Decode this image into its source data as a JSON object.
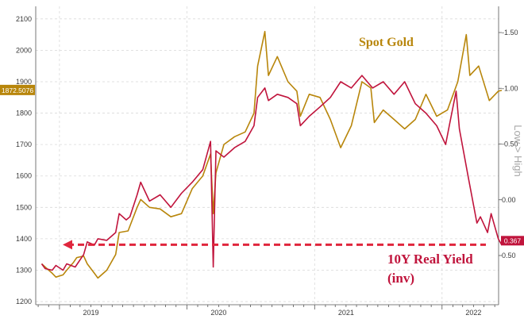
{
  "chart_data": {
    "type": "line",
    "title": "",
    "x_ticks": [
      "2019",
      "2020",
      "2021",
      "2022"
    ],
    "left_axis": {
      "ticks": [
        1200,
        1300,
        1400,
        1500,
        1600,
        1700,
        1800,
        1900,
        2000,
        2100
      ],
      "range": [
        1190,
        2140
      ]
    },
    "right_axis": {
      "label": "Low > High",
      "ticks": [
        -1.5,
        -1.0,
        -0.5,
        0.0,
        0.5
      ],
      "tick_labels": [
        "-1.50",
        "-1.00",
        "-0.50",
        "0.00",
        "0.50"
      ],
      "inverted": true
    },
    "last_value_labels": {
      "gold": "1872.5076",
      "real_yield": "0.367"
    },
    "series": [
      {
        "name": "Spot Gold",
        "color": "#b8860b",
        "axis": "left",
        "points": [
          [
            "2018-11",
            1320
          ],
          [
            "2018-11",
            1310
          ],
          [
            "2018-12",
            1290
          ],
          [
            "2018-12",
            1278
          ],
          [
            "2019-01",
            1285
          ],
          [
            "2019-01",
            1300
          ],
          [
            "2019-02",
            1325
          ],
          [
            "2019-02",
            1340
          ],
          [
            "2019-03",
            1345
          ],
          [
            "2019-03",
            1320
          ],
          [
            "2019-04",
            1290
          ],
          [
            "2019-04",
            1275
          ],
          [
            "2019-05",
            1300
          ],
          [
            "2019-06",
            1350
          ],
          [
            "2019-06",
            1420
          ],
          [
            "2019-07",
            1425
          ],
          [
            "2019-08",
            1500
          ],
          [
            "2019-08",
            1525
          ],
          [
            "2019-09",
            1500
          ],
          [
            "2019-10",
            1495
          ],
          [
            "2019-11",
            1470
          ],
          [
            "2019-12",
            1480
          ],
          [
            "2020-01",
            1560
          ],
          [
            "2020-02",
            1600
          ],
          [
            "2020-03",
            1670
          ],
          [
            "2020-03",
            1480
          ],
          [
            "2020-03",
            1610
          ],
          [
            "2020-04",
            1700
          ],
          [
            "2020-05",
            1725
          ],
          [
            "2020-06",
            1740
          ],
          [
            "2020-07",
            1800
          ],
          [
            "2020-07",
            1950
          ],
          [
            "2020-08",
            2060
          ],
          [
            "2020-08",
            1920
          ],
          [
            "2020-09",
            1980
          ],
          [
            "2020-10",
            1900
          ],
          [
            "2020-11",
            1870
          ],
          [
            "2020-11",
            1790
          ],
          [
            "2020-12",
            1860
          ],
          [
            "2021-01",
            1850
          ],
          [
            "2021-02",
            1780
          ],
          [
            "2021-03",
            1690
          ],
          [
            "2021-04",
            1760
          ],
          [
            "2021-05",
            1900
          ],
          [
            "2021-06",
            1880
          ],
          [
            "2021-06",
            1770
          ],
          [
            "2021-07",
            1810
          ],
          [
            "2021-08",
            1780
          ],
          [
            "2021-09",
            1750
          ],
          [
            "2021-10",
            1780
          ],
          [
            "2021-11",
            1860
          ],
          [
            "2021-12",
            1790
          ],
          [
            "2022-01",
            1810
          ],
          [
            "2022-02",
            1900
          ],
          [
            "2022-03",
            2050
          ],
          [
            "2022-03",
            1920
          ],
          [
            "2022-04",
            1950
          ],
          [
            "2022-05",
            1840
          ],
          [
            "2022-06",
            1870
          ],
          [
            "2022-06",
            1872.5
          ]
        ]
      },
      {
        "name": "10Y Real Yield (inv)",
        "color": "#c0143c",
        "axis": "right",
        "points": [
          [
            "2018-11",
            1320
          ],
          [
            "2018-11",
            1305
          ],
          [
            "2018-12",
            1300
          ],
          [
            "2018-12",
            1315
          ],
          [
            "2019-01",
            1300
          ],
          [
            "2019-01",
            1320
          ],
          [
            "2019-02",
            1310
          ],
          [
            "2019-03",
            1350
          ],
          [
            "2019-03",
            1390
          ],
          [
            "2019-04",
            1380
          ],
          [
            "2019-04",
            1400
          ],
          [
            "2019-05",
            1395
          ],
          [
            "2019-06",
            1420
          ],
          [
            "2019-06",
            1480
          ],
          [
            "2019-07",
            1460
          ],
          [
            "2019-07",
            1470
          ],
          [
            "2019-08",
            1540
          ],
          [
            "2019-08",
            1580
          ],
          [
            "2019-09",
            1520
          ],
          [
            "2019-10",
            1540
          ],
          [
            "2019-11",
            1500
          ],
          [
            "2019-12",
            1545
          ],
          [
            "2020-01",
            1580
          ],
          [
            "2020-02",
            1620
          ],
          [
            "2020-03",
            1710
          ],
          [
            "2020-03",
            1310
          ],
          [
            "2020-03",
            1680
          ],
          [
            "2020-04",
            1660
          ],
          [
            "2020-05",
            1690
          ],
          [
            "2020-06",
            1710
          ],
          [
            "2020-07",
            1760
          ],
          [
            "2020-07",
            1850
          ],
          [
            "2020-08",
            1880
          ],
          [
            "2020-08",
            1840
          ],
          [
            "2020-09",
            1860
          ],
          [
            "2020-10",
            1850
          ],
          [
            "2020-11",
            1830
          ],
          [
            "2020-11",
            1760
          ],
          [
            "2020-12",
            1790
          ],
          [
            "2021-01",
            1820
          ],
          [
            "2021-02",
            1850
          ],
          [
            "2021-03",
            1900
          ],
          [
            "2021-04",
            1880
          ],
          [
            "2021-05",
            1920
          ],
          [
            "2021-06",
            1880
          ],
          [
            "2021-07",
            1900
          ],
          [
            "2021-08",
            1860
          ],
          [
            "2021-09",
            1900
          ],
          [
            "2021-10",
            1830
          ],
          [
            "2021-11",
            1800
          ],
          [
            "2021-12",
            1760
          ],
          [
            "2022-01",
            1700
          ],
          [
            "2022-01",
            1760
          ],
          [
            "2022-02",
            1870
          ],
          [
            "2022-02",
            1750
          ],
          [
            "2022-03",
            1600
          ],
          [
            "2022-04",
            1450
          ],
          [
            "2022-04",
            1470
          ],
          [
            "2022-05",
            1420
          ],
          [
            "2022-05",
            1480
          ],
          [
            "2022-06",
            1400
          ],
          [
            "2022-06",
            1380
          ]
        ]
      }
    ],
    "annotations": {
      "gold_label": "Spot Gold",
      "yield_label_line1": "10Y Real Yield",
      "yield_label_line2": "(inv)"
    },
    "reference_line": {
      "y": 1381,
      "style": "dashed",
      "color": "#e0263d"
    },
    "grid": true
  }
}
